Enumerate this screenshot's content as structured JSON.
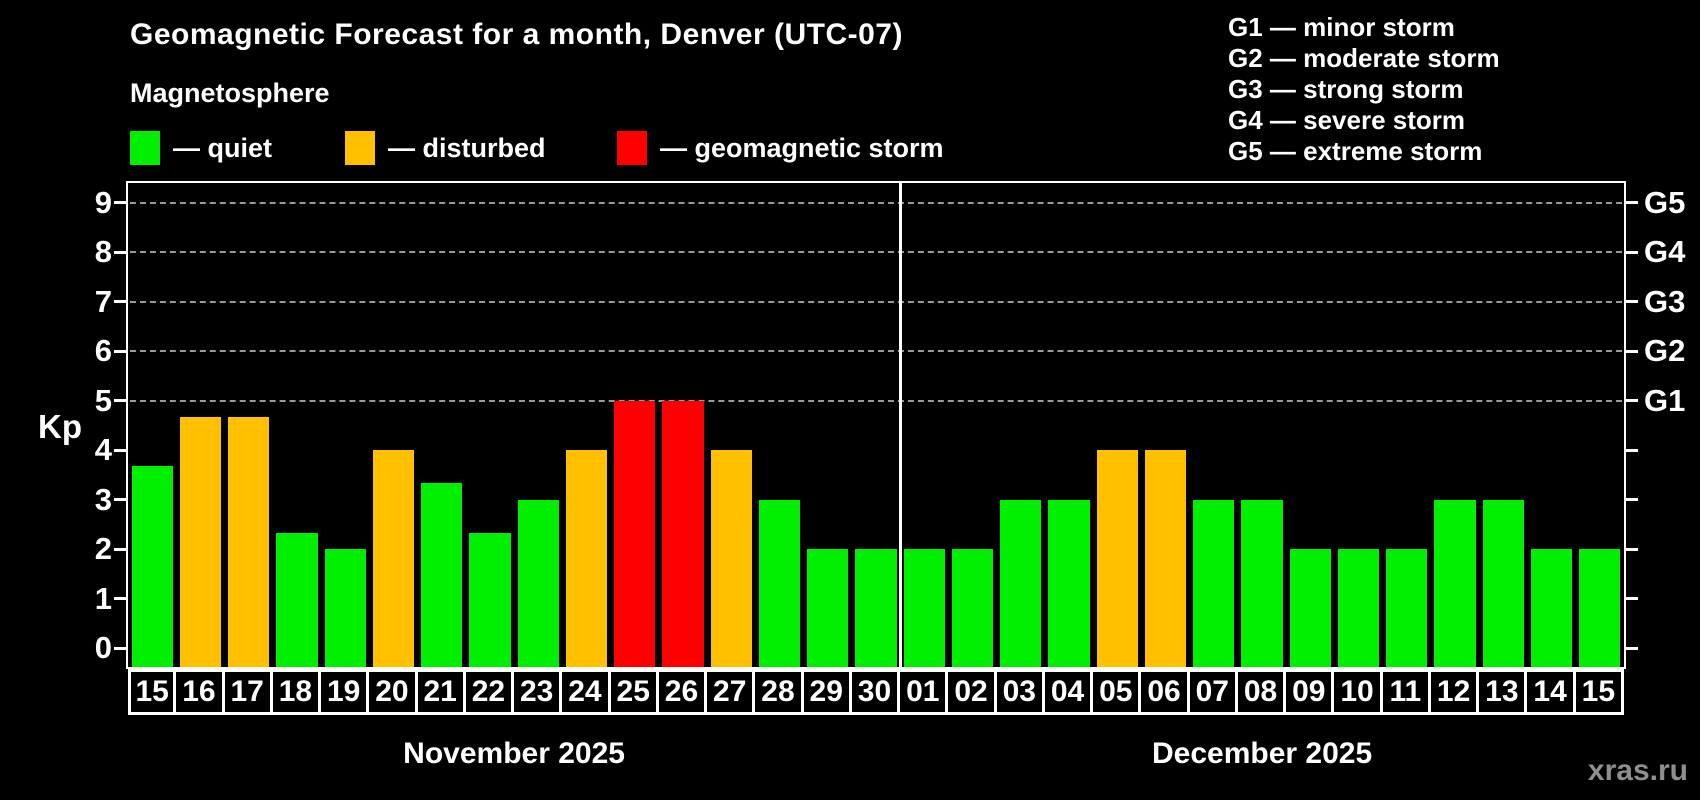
{
  "header": {
    "title": "Geomagnetic Forecast for a month, Denver (UTC-07)",
    "subtitle": "Magnetosphere"
  },
  "palette": {
    "quiet": "#00ee00",
    "disturbed": "#ffc000",
    "storm": "#ff0000",
    "axis": "#ffffff",
    "gridline": "#999999",
    "background": "#000000",
    "watermark_color": "#8f8f8f"
  },
  "legend": {
    "items": [
      {
        "key": "quiet",
        "label": "— quiet"
      },
      {
        "key": "disturbed",
        "label": "— disturbed"
      },
      {
        "key": "storm",
        "label": "— geomagnetic storm"
      }
    ]
  },
  "g_legend": {
    "items": [
      {
        "label": "G1 — minor storm"
      },
      {
        "label": "G2 — moderate storm"
      },
      {
        "label": "G3 — strong storm"
      },
      {
        "label": "G4 — severe storm"
      },
      {
        "label": "G5 — extreme storm"
      }
    ]
  },
  "axes": {
    "kp_label": "Kp",
    "left_ticks": [
      "0",
      "1",
      "2",
      "3",
      "4",
      "5",
      "6",
      "7",
      "8",
      "9"
    ],
    "right_labels": [
      {
        "kp": 5,
        "label": "G1"
      },
      {
        "kp": 6,
        "label": "G2"
      },
      {
        "kp": 7,
        "label": "G3"
      },
      {
        "kp": 8,
        "label": "G4"
      },
      {
        "kp": 9,
        "label": "G5"
      }
    ],
    "gridlines_at_kp": [
      5,
      6,
      7,
      8,
      9
    ]
  },
  "chart_data": {
    "type": "bar",
    "title": "Geomagnetic Forecast for a month, Denver (UTC-07)",
    "ylabel": "Kp",
    "ylim": [
      0,
      9
    ],
    "grid": "dashed horizontal lines at Kp 5-9 only",
    "legend_position": "top",
    "months": [
      {
        "label": "November 2025",
        "days": [
          {
            "day": "15",
            "kp": 3.67,
            "state": "quiet"
          },
          {
            "day": "16",
            "kp": 4.67,
            "state": "disturbed"
          },
          {
            "day": "17",
            "kp": 4.67,
            "state": "disturbed"
          },
          {
            "day": "18",
            "kp": 2.33,
            "state": "quiet"
          },
          {
            "day": "19",
            "kp": 2,
            "state": "quiet"
          },
          {
            "day": "20",
            "kp": 4,
            "state": "disturbed"
          },
          {
            "day": "21",
            "kp": 3.33,
            "state": "quiet"
          },
          {
            "day": "22",
            "kp": 2.33,
            "state": "quiet"
          },
          {
            "day": "23",
            "kp": 3,
            "state": "quiet"
          },
          {
            "day": "24",
            "kp": 4,
            "state": "disturbed"
          },
          {
            "day": "25",
            "kp": 5,
            "state": "storm"
          },
          {
            "day": "26",
            "kp": 5,
            "state": "storm"
          },
          {
            "day": "27",
            "kp": 4,
            "state": "disturbed"
          },
          {
            "day": "28",
            "kp": 3,
            "state": "quiet"
          },
          {
            "day": "29",
            "kp": 2,
            "state": "quiet"
          },
          {
            "day": "30",
            "kp": 2,
            "state": "quiet"
          }
        ]
      },
      {
        "label": "December 2025",
        "days": [
          {
            "day": "01",
            "kp": 2,
            "state": "quiet"
          },
          {
            "day": "02",
            "kp": 2,
            "state": "quiet"
          },
          {
            "day": "03",
            "kp": 3,
            "state": "quiet"
          },
          {
            "day": "04",
            "kp": 3,
            "state": "quiet"
          },
          {
            "day": "05",
            "kp": 4,
            "state": "disturbed"
          },
          {
            "day": "06",
            "kp": 4,
            "state": "disturbed"
          },
          {
            "day": "07",
            "kp": 3,
            "state": "quiet"
          },
          {
            "day": "08",
            "kp": 3,
            "state": "quiet"
          },
          {
            "day": "09",
            "kp": 2,
            "state": "quiet"
          },
          {
            "day": "10",
            "kp": 2,
            "state": "quiet"
          },
          {
            "day": "11",
            "kp": 2,
            "state": "quiet"
          },
          {
            "day": "12",
            "kp": 3,
            "state": "quiet"
          },
          {
            "day": "13",
            "kp": 3,
            "state": "quiet"
          },
          {
            "day": "14",
            "kp": 2,
            "state": "quiet"
          },
          {
            "day": "15",
            "kp": 2,
            "state": "quiet"
          }
        ]
      }
    ]
  },
  "watermark": {
    "text": "xras.ru"
  }
}
